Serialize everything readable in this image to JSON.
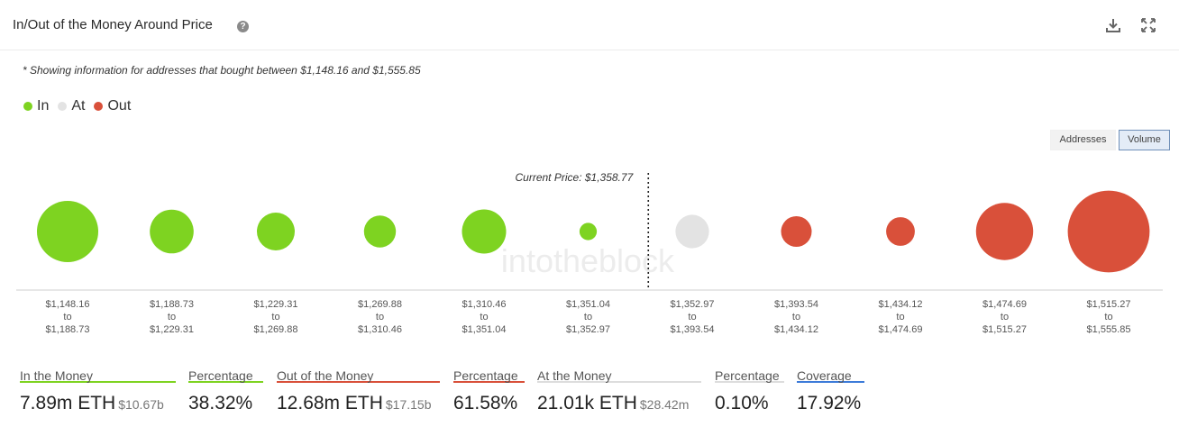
{
  "header": {
    "title": "In/Out of the Money Around Price",
    "help_glyph": "?",
    "icons": [
      "download-icon",
      "fullscreen-icon"
    ]
  },
  "note": "* Showing information for addresses that bought between $1,148.16 and $1,555.85",
  "legend": [
    {
      "label": "In",
      "color": "#7ed321"
    },
    {
      "label": "At",
      "color": "#e3e3e3"
    },
    {
      "label": "Out",
      "color": "#d9503a"
    }
  ],
  "toggle": {
    "addresses": "Addresses",
    "volume": "Volume",
    "selected": "Volume"
  },
  "colors": {
    "in": "#7ed321",
    "at": "#e3e3e3",
    "out": "#d9503a",
    "coverage": "#3d7bd9"
  },
  "chart_data": {
    "type": "bubble",
    "size_measure": "volume",
    "current_price_label": "Current Price: $1,358.77",
    "current_price": 1358.77,
    "watermark": "intotheblock",
    "categories": [
      {
        "from": "$1,148.16",
        "to": "$1,188.73",
        "status": "in",
        "relative_size": 1.0
      },
      {
        "from": "$1,188.73",
        "to": "$1,229.31",
        "status": "in",
        "relative_size": 0.51
      },
      {
        "from": "$1,229.31",
        "to": "$1,269.88",
        "status": "in",
        "relative_size": 0.38
      },
      {
        "from": "$1,269.88",
        "to": "$1,310.46",
        "status": "in",
        "relative_size": 0.27
      },
      {
        "from": "$1,310.46",
        "to": "$1,351.04",
        "status": "in",
        "relative_size": 0.52
      },
      {
        "from": "$1,351.04",
        "to": "$1,352.97",
        "status": "in",
        "relative_size": 0.08
      },
      {
        "from": "$1,352.97",
        "to": "$1,393.54",
        "status": "at",
        "relative_size": 0.3
      },
      {
        "from": "$1,393.54",
        "to": "$1,434.12",
        "status": "out",
        "relative_size": 0.25
      },
      {
        "from": "$1,434.12",
        "to": "$1,474.69",
        "status": "out",
        "relative_size": 0.22
      },
      {
        "from": "$1,474.69",
        "to": "$1,515.27",
        "status": "out",
        "relative_size": 0.87
      },
      {
        "from": "$1,515.27",
        "to": "$1,555.85",
        "status": "out",
        "relative_size": 1.78
      }
    ],
    "range_to_word": "to"
  },
  "stats": [
    {
      "label": "In the Money",
      "value": "7.89m ETH",
      "sub": "$10.67b",
      "color": "#7ed321"
    },
    {
      "label": "Percentage",
      "value": "38.32%",
      "sub": "",
      "color": "#7ed321"
    },
    {
      "label": "Out of the Money",
      "value": "12.68m ETH",
      "sub": "$17.15b",
      "color": "#d9503a"
    },
    {
      "label": "Percentage",
      "value": "61.58%",
      "sub": "",
      "color": "#d9503a"
    },
    {
      "label": "At the Money",
      "value": "21.01k ETH",
      "sub": "$28.42m",
      "color": "#dddddd"
    },
    {
      "label": "Percentage",
      "value": "0.10%",
      "sub": "",
      "color": "#dddddd"
    },
    {
      "label": "Coverage",
      "value": "17.92%",
      "sub": "",
      "color": "#3d7bd9"
    }
  ]
}
